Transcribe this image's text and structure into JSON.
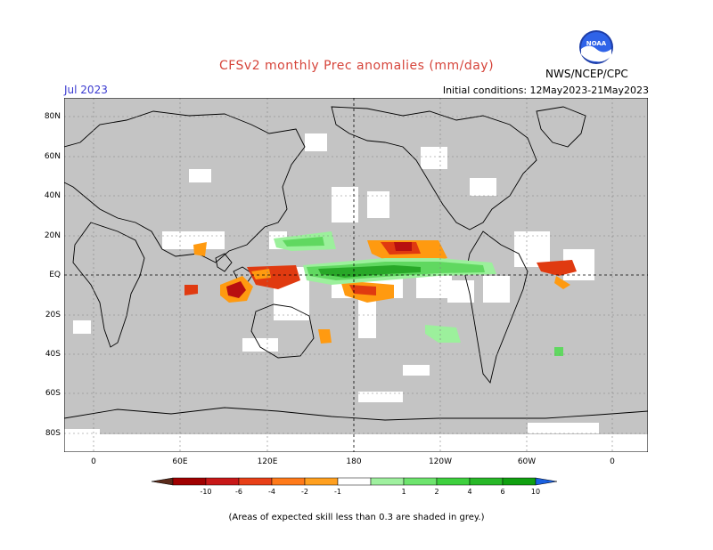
{
  "header": {
    "title": "CFSv2 monthly Prec anomalies (mm/day)",
    "month": "Jul 2023",
    "initial_conditions": "Initial conditions: 12May2023-21May2023",
    "agency": "NWS/NCEP/CPC",
    "logo_text": "NOAA"
  },
  "map": {
    "projection": "cylindrical equidistant, centered 180",
    "lat_labels": [
      "80N",
      "60N",
      "40N",
      "20N",
      "EQ",
      "20S",
      "40S",
      "60S",
      "80S"
    ],
    "lon_labels": [
      "0",
      "60E",
      "120E",
      "180",
      "120W",
      "60W",
      "0"
    ],
    "colors": {
      "ocean_grey": "#c4c4c4",
      "land_white": "#ffffff",
      "dry_strong": "#b81010",
      "dry_mid": "#e03a10",
      "dry_weak": "#ff9a10",
      "wet_weak": "#9cf09c",
      "wet_mid": "#60d860",
      "wet_strong": "#28a828"
    }
  },
  "colorbar": {
    "labels": [
      "-10",
      "-6",
      "-4",
      "-2",
      "-1",
      "1",
      "2",
      "4",
      "6",
      "10"
    ],
    "colors": [
      "#5a2a1a",
      "#a00000",
      "#c81818",
      "#e84018",
      "#ff7a1a",
      "#ffa020",
      "#ffffff",
      "#9ff09f",
      "#6ee46e",
      "#3ed03e",
      "#28b828",
      "#10a010",
      "#1a60e0"
    ]
  },
  "footnote": "(Areas of expected skill less than 0.3 are shaded in grey.)"
}
